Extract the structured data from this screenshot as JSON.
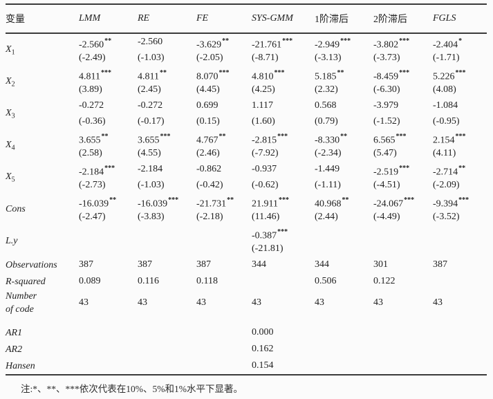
{
  "table": {
    "header": [
      "变量",
      "LMM",
      "RE",
      "FE",
      "SYS-GMM",
      "1阶滞后",
      "2阶滞后",
      "FGLS"
    ],
    "rows": [
      {
        "type": "coef",
        "base": "X",
        "sub": "1",
        "cells": [
          {
            "v": "-2.560",
            "s": "**",
            "t": "(-2.49)"
          },
          {
            "v": "-2.560",
            "s": "",
            "t": "(-1.03)"
          },
          {
            "v": "-3.629",
            "s": "**",
            "t": "(-2.05)"
          },
          {
            "v": "-21.761",
            "s": "***",
            "t": "(-8.71)"
          },
          {
            "v": "-2.949",
            "s": "***",
            "t": "(-3.13)"
          },
          {
            "v": "-3.802",
            "s": "***",
            "t": "(-3.73)"
          },
          {
            "v": "-2.404",
            "s": "*",
            "t": "(-1.71)"
          }
        ]
      },
      {
        "type": "coef",
        "base": "X",
        "sub": "2",
        "cells": [
          {
            "v": "4.811",
            "s": "***",
            "t": "(3.89)"
          },
          {
            "v": "4.811",
            "s": "**",
            "t": "(2.45)"
          },
          {
            "v": "8.070",
            "s": "***",
            "t": "(4.45)"
          },
          {
            "v": "4.810",
            "s": "***",
            "t": "(4.25)"
          },
          {
            "v": "5.185",
            "s": "**",
            "t": "(2.32)"
          },
          {
            "v": "-8.459",
            "s": "***",
            "t": "(-6.30)"
          },
          {
            "v": "5.226",
            "s": "***",
            "t": "(4.08)"
          }
        ]
      },
      {
        "type": "coef",
        "base": "X",
        "sub": "3",
        "cells": [
          {
            "v": "-0.272",
            "s": "",
            "t": "(-0.36)"
          },
          {
            "v": "-0.272",
            "s": "",
            "t": "(-0.17)"
          },
          {
            "v": "0.699",
            "s": "",
            "t": "(0.15)"
          },
          {
            "v": "1.117",
            "s": "",
            "t": "(1.60)"
          },
          {
            "v": "0.568",
            "s": "",
            "t": "(0.79)"
          },
          {
            "v": "-3.979",
            "s": "",
            "t": "(-1.52)"
          },
          {
            "v": "-1.084",
            "s": "",
            "t": "(-0.95)"
          }
        ]
      },
      {
        "type": "coef",
        "base": "X",
        "sub": "4",
        "cells": [
          {
            "v": "3.655",
            "s": "**",
            "t": "(2.58)"
          },
          {
            "v": "3.655",
            "s": "***",
            "t": "(4.55)"
          },
          {
            "v": "4.767",
            "s": "**",
            "t": "(2.46)"
          },
          {
            "v": "-2.815",
            "s": "***",
            "t": "(-7.92)"
          },
          {
            "v": "-8.330",
            "s": "**",
            "t": "(-2.34)"
          },
          {
            "v": "6.565",
            "s": "***",
            "t": "(5.47)"
          },
          {
            "v": "2.154",
            "s": "***",
            "t": "(4.11)"
          }
        ]
      },
      {
        "type": "coef",
        "base": "X",
        "sub": "5",
        "cells": [
          {
            "v": "-2.184",
            "s": "***",
            "t": "(-2.73)"
          },
          {
            "v": "-2.184",
            "s": "",
            "t": "(-1.03)"
          },
          {
            "v": "-0.862",
            "s": "",
            "t": "(-0.42)"
          },
          {
            "v": "-0.937",
            "s": "",
            "t": "(-0.62)"
          },
          {
            "v": "-1.449",
            "s": "",
            "t": "(-1.11)"
          },
          {
            "v": "-2.519",
            "s": "***",
            "t": "(-4.51)"
          },
          {
            "v": "-2.714",
            "s": "**",
            "t": "(-2.09)"
          }
        ]
      },
      {
        "type": "coef",
        "base": "Cons",
        "sub": "",
        "cells": [
          {
            "v": "-16.039",
            "s": "**",
            "t": "(-2.47)"
          },
          {
            "v": "-16.039",
            "s": "***",
            "t": "(-3.83)"
          },
          {
            "v": "-21.731",
            "s": "**",
            "t": "(-2.18)"
          },
          {
            "v": "21.911",
            "s": "***",
            "t": "(11.46)"
          },
          {
            "v": "40.968",
            "s": "**",
            "t": "(2.44)"
          },
          {
            "v": "-24.067",
            "s": "***",
            "t": "(-4.49)"
          },
          {
            "v": "-9.394",
            "s": "***",
            "t": "(-3.52)"
          }
        ]
      },
      {
        "type": "coef",
        "base": "L.y",
        "sub": "",
        "cells": [
          {
            "v": "",
            "s": "",
            "t": ""
          },
          {
            "v": "",
            "s": "",
            "t": ""
          },
          {
            "v": "",
            "s": "",
            "t": ""
          },
          {
            "v": "-0.387",
            "s": "***",
            "t": "(-21.81)"
          },
          {
            "v": "",
            "s": "",
            "t": ""
          },
          {
            "v": "",
            "s": "",
            "t": ""
          },
          {
            "v": "",
            "s": "",
            "t": ""
          }
        ]
      },
      {
        "type": "stat",
        "base": "Observations",
        "sub": "",
        "values": [
          "387",
          "387",
          "387",
          "344",
          "344",
          "301",
          "387"
        ]
      },
      {
        "type": "stat",
        "base": "R-squared",
        "sub": "",
        "values": [
          "0.089",
          "0.116",
          "0.118",
          "",
          "0.506",
          "0.122",
          ""
        ]
      },
      {
        "type": "stat",
        "base": "Number\nof code",
        "sub": "",
        "values": [
          "43",
          "43",
          "43",
          "43",
          "43",
          "43",
          "43"
        ]
      },
      {
        "type": "stat",
        "base": "AR1",
        "sub": "",
        "gap": true,
        "values": [
          "",
          "",
          "",
          "0.000",
          "",
          "",
          ""
        ]
      },
      {
        "type": "stat",
        "base": "AR2",
        "sub": "",
        "values": [
          "",
          "",
          "",
          "0.162",
          "",
          "",
          ""
        ]
      },
      {
        "type": "stat",
        "base": "Hansen",
        "sub": "",
        "values": [
          "",
          "",
          "",
          "0.154",
          "",
          "",
          ""
        ]
      }
    ],
    "footnote": "注:*、**、***依次代表在10%、5%和1%水平下显著。"
  }
}
